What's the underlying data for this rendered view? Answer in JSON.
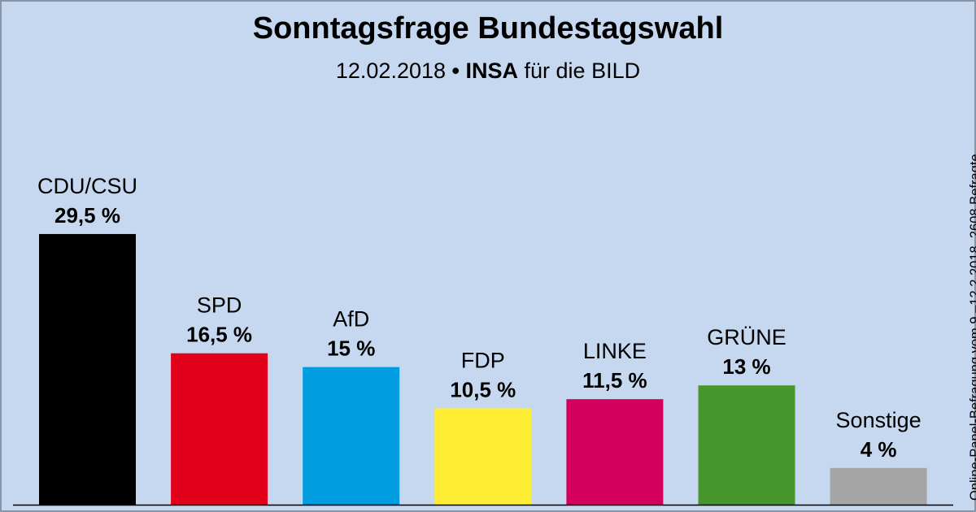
{
  "header": {
    "title": "Sonntagsfrage Bundestagswahl",
    "subtitle_date": "12.02.2018",
    "subtitle_bullet": "•",
    "subtitle_institute": "INSA",
    "subtitle_client": "für die BILD"
  },
  "side_note": "Online-Panel-Befragung vom 9.–12.2.2018, 2608 Befragte",
  "chart_data": {
    "type": "bar",
    "title": "Sonntagsfrage Bundestagswahl",
    "xlabel": "",
    "ylabel": "",
    "ylim": [
      0,
      30
    ],
    "grid": false,
    "categories": [
      "CDU/CSU",
      "SPD",
      "AfD",
      "FDP",
      "LINKE",
      "GRÜNE",
      "Sonstige"
    ],
    "values": [
      29.5,
      16.5,
      15,
      10.5,
      11.5,
      13,
      4
    ],
    "value_labels": [
      "29,5 %",
      "16,5 %",
      "15 %",
      "10,5 %",
      "11,5 %",
      "13 %",
      "4 %"
    ],
    "colors": [
      "#000000",
      "#e2001a",
      "#009ee0",
      "#ffed34",
      "#d4005e",
      "#46962b",
      "#a5a5a5"
    ]
  }
}
